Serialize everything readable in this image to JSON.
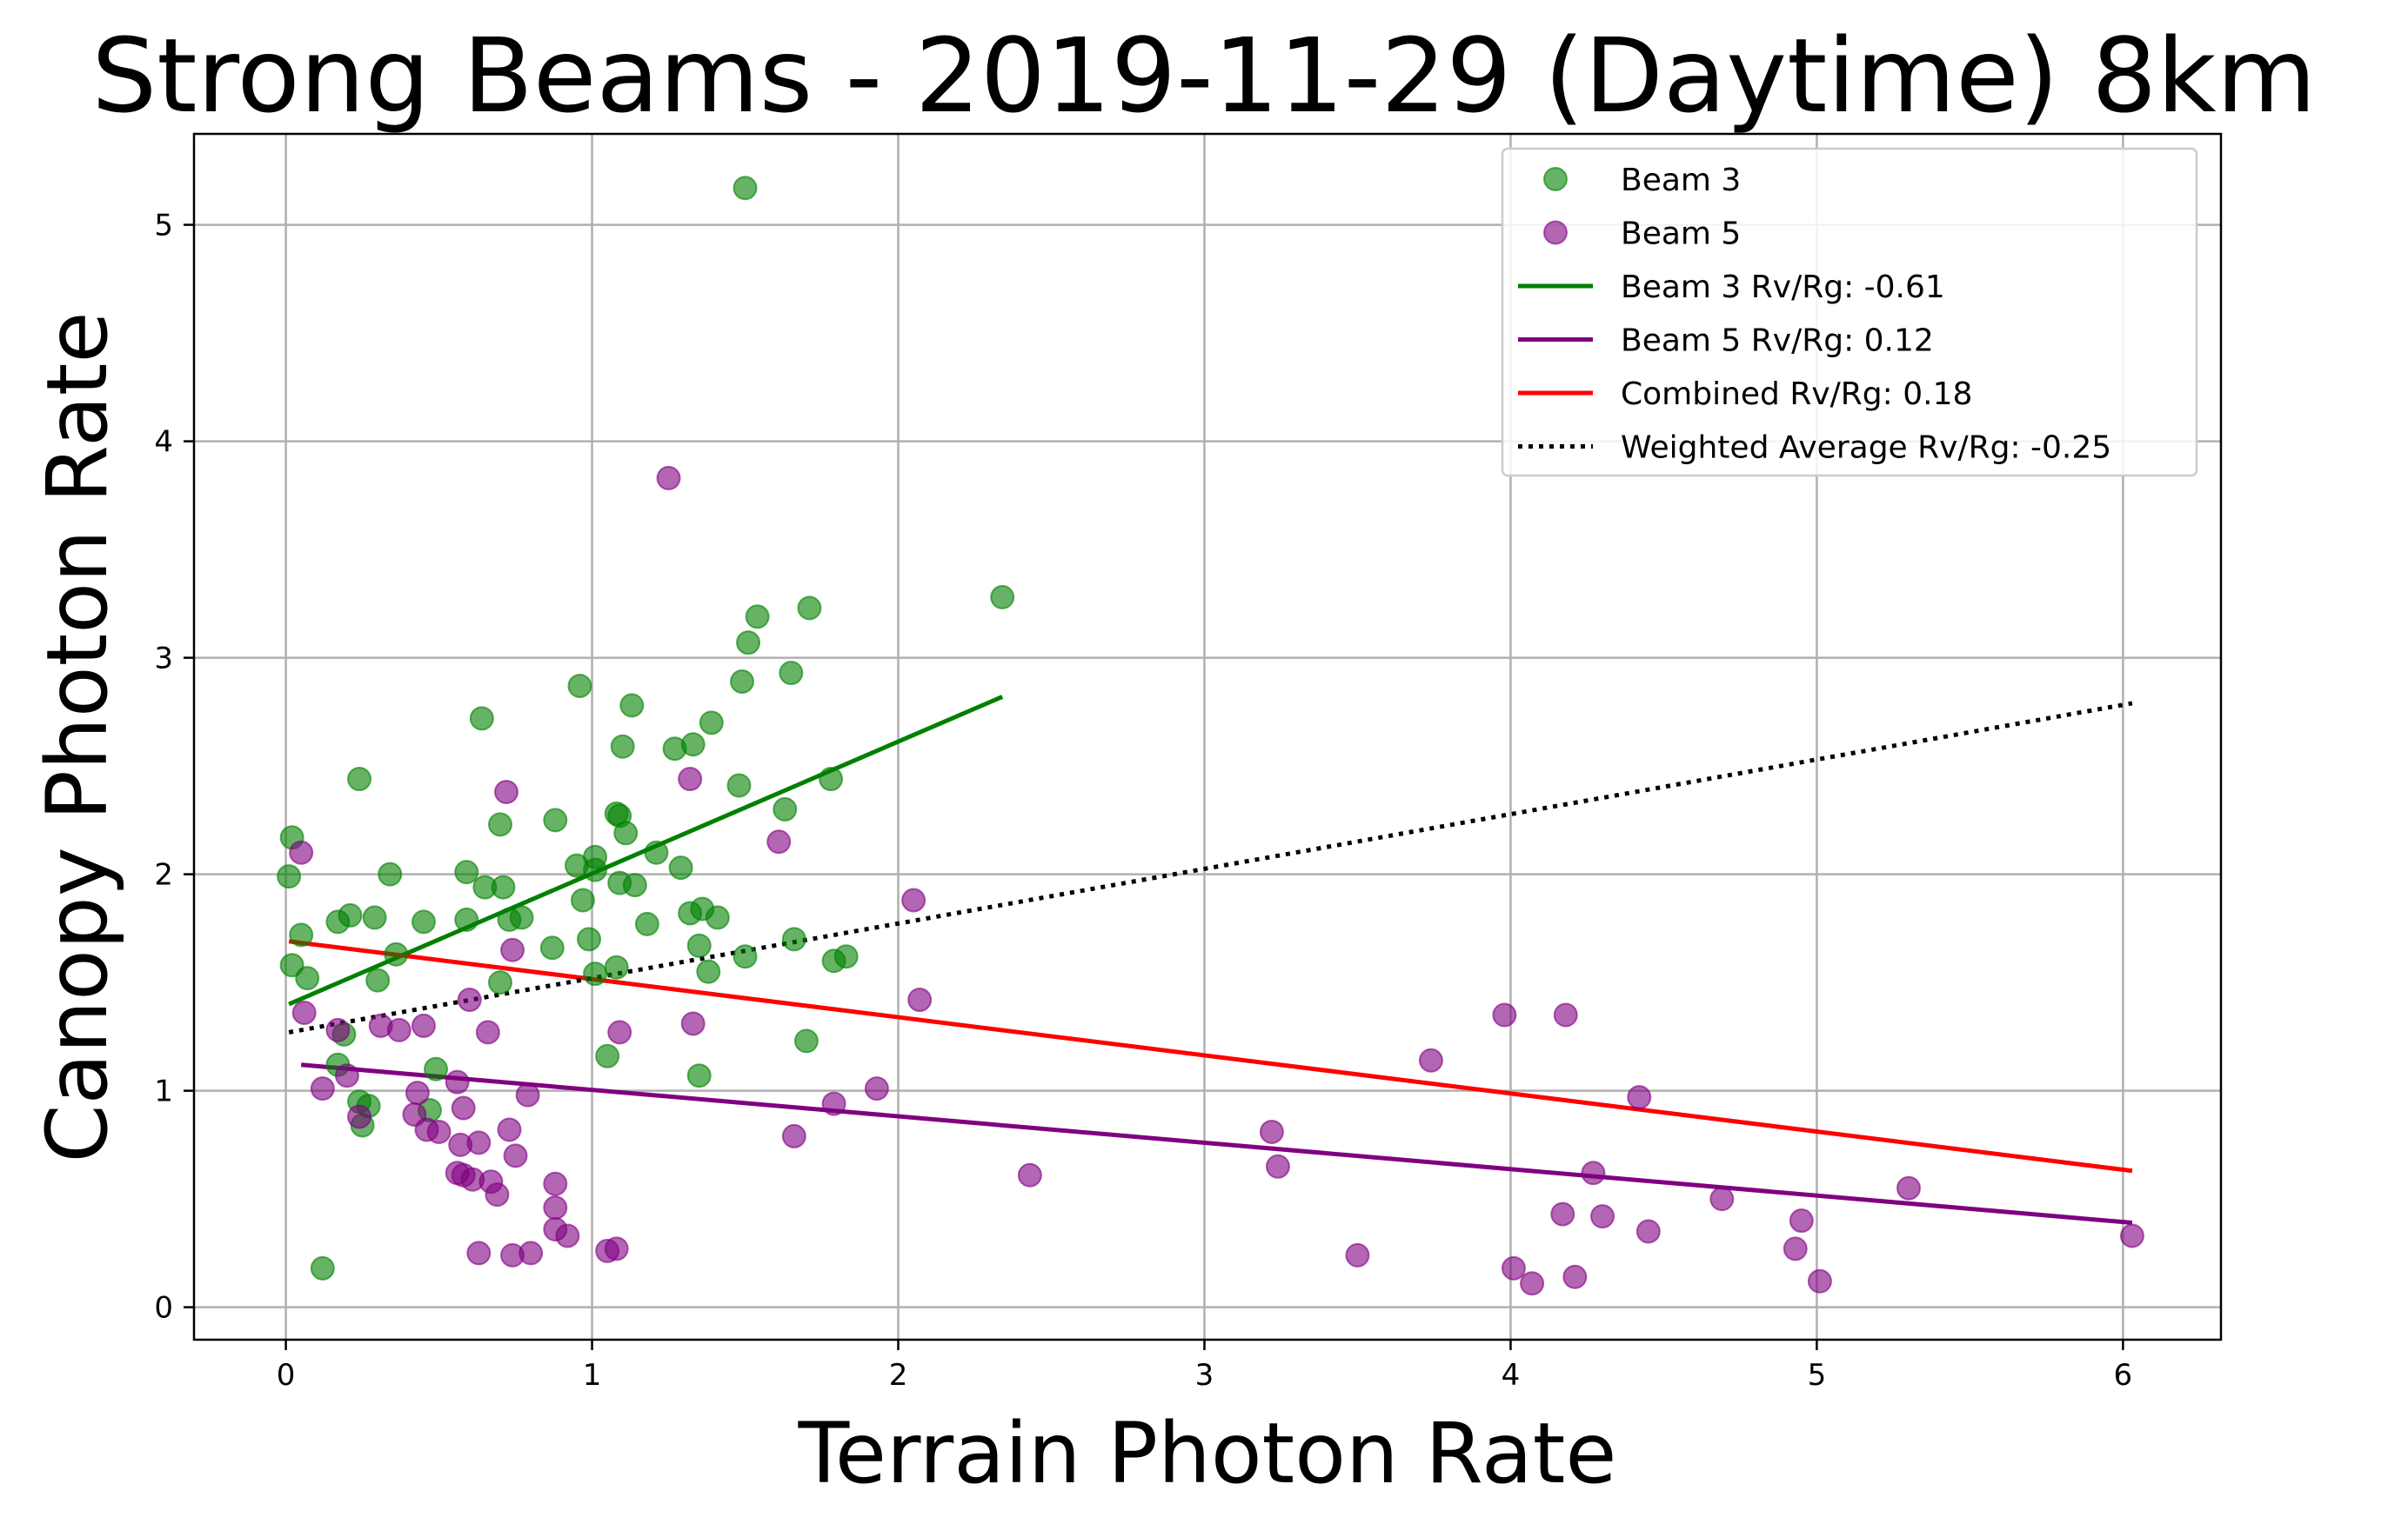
{
  "chart_data": {
    "type": "scatter",
    "title": "Strong Beams - 2019-11-29 (Daytime) 8km",
    "xlabel": "Terrain Photon Rate",
    "ylabel": "Canopy Photon Rate",
    "xlim": [
      -0.3,
      6.32
    ],
    "ylim": [
      -0.15,
      5.42
    ],
    "xticks": [
      0,
      1,
      2,
      3,
      4,
      5,
      6
    ],
    "yticks": [
      0,
      1,
      2,
      3,
      4,
      5
    ],
    "grid": true,
    "legend_position": "top-right",
    "series": [
      {
        "name": "Beam 3",
        "kind": "scatter",
        "color": "#008000",
        "points": [
          [
            1.5,
            5.17
          ],
          [
            2.34,
            3.28
          ],
          [
            1.71,
            3.23
          ],
          [
            1.54,
            3.19
          ],
          [
            1.51,
            3.07
          ],
          [
            1.65,
            2.93
          ],
          [
            1.49,
            2.89
          ],
          [
            0.96,
            2.87
          ],
          [
            1.13,
            2.78
          ],
          [
            0.64,
            2.72
          ],
          [
            1.39,
            2.7
          ],
          [
            1.33,
            2.6
          ],
          [
            1.1,
            2.59
          ],
          [
            1.27,
            2.58
          ],
          [
            1.78,
            2.44
          ],
          [
            0.24,
            2.44
          ],
          [
            1.48,
            2.41
          ],
          [
            1.09,
            2.27
          ],
          [
            1.08,
            2.28
          ],
          [
            1.63,
            2.3
          ],
          [
            0.7,
            2.23
          ],
          [
            0.88,
            2.25
          ],
          [
            1.11,
            2.19
          ],
          [
            0.02,
            2.17
          ],
          [
            1.21,
            2.1
          ],
          [
            1.01,
            2.08
          ],
          [
            0.95,
            2.04
          ],
          [
            1.29,
            2.03
          ],
          [
            1.01,
            2.02
          ],
          [
            0.01,
            1.99
          ],
          [
            0.34,
            2.0
          ],
          [
            0.59,
            2.01
          ],
          [
            0.65,
            1.94
          ],
          [
            0.71,
            1.94
          ],
          [
            1.09,
            1.96
          ],
          [
            1.14,
            1.95
          ],
          [
            0.97,
            1.88
          ],
          [
            1.36,
            1.84
          ],
          [
            0.21,
            1.81
          ],
          [
            0.29,
            1.8
          ],
          [
            0.59,
            1.79
          ],
          [
            0.45,
            1.78
          ],
          [
            0.73,
            1.79
          ],
          [
            0.77,
            1.8
          ],
          [
            1.32,
            1.82
          ],
          [
            1.41,
            1.8
          ],
          [
            1.18,
            1.77
          ],
          [
            0.17,
            1.78
          ],
          [
            0.05,
            1.72
          ],
          [
            1.66,
            1.7
          ],
          [
            0.99,
            1.7
          ],
          [
            1.35,
            1.67
          ],
          [
            0.87,
            1.66
          ],
          [
            0.36,
            1.63
          ],
          [
            1.83,
            1.62
          ],
          [
            1.5,
            1.62
          ],
          [
            1.79,
            1.6
          ],
          [
            0.02,
            1.58
          ],
          [
            1.08,
            1.57
          ],
          [
            1.38,
            1.55
          ],
          [
            1.01,
            1.54
          ],
          [
            0.07,
            1.52
          ],
          [
            0.3,
            1.51
          ],
          [
            0.7,
            1.5
          ],
          [
            0.19,
            1.26
          ],
          [
            1.7,
            1.23
          ],
          [
            1.05,
            1.16
          ],
          [
            0.17,
            1.12
          ],
          [
            0.49,
            1.1
          ],
          [
            1.35,
            1.07
          ],
          [
            0.24,
            0.95
          ],
          [
            0.27,
            0.93
          ],
          [
            0.47,
            0.91
          ],
          [
            0.25,
            0.84
          ],
          [
            0.12,
            0.18
          ]
        ]
      },
      {
        "name": "Beam 5",
        "kind": "scatter",
        "color": "#800080",
        "points": [
          [
            1.25,
            3.83
          ],
          [
            1.32,
            2.44
          ],
          [
            0.72,
            2.38
          ],
          [
            1.61,
            2.15
          ],
          [
            0.05,
            2.1
          ],
          [
            2.05,
            1.88
          ],
          [
            0.74,
            1.65
          ],
          [
            0.6,
            1.42
          ],
          [
            2.07,
            1.42
          ],
          [
            0.06,
            1.36
          ],
          [
            3.98,
            1.35
          ],
          [
            4.18,
            1.35
          ],
          [
            1.33,
            1.31
          ],
          [
            0.31,
            1.3
          ],
          [
            0.45,
            1.3
          ],
          [
            0.37,
            1.28
          ],
          [
            0.17,
            1.28
          ],
          [
            0.66,
            1.27
          ],
          [
            1.09,
            1.27
          ],
          [
            3.74,
            1.14
          ],
          [
            0.2,
            1.07
          ],
          [
            0.56,
            1.04
          ],
          [
            0.12,
            1.01
          ],
          [
            1.93,
            1.01
          ],
          [
            0.43,
            0.99
          ],
          [
            0.79,
            0.98
          ],
          [
            4.42,
            0.97
          ],
          [
            1.79,
            0.94
          ],
          [
            0.58,
            0.92
          ],
          [
            0.42,
            0.89
          ],
          [
            0.24,
            0.88
          ],
          [
            0.46,
            0.82
          ],
          [
            0.5,
            0.81
          ],
          [
            0.73,
            0.82
          ],
          [
            3.22,
            0.81
          ],
          [
            1.66,
            0.79
          ],
          [
            0.57,
            0.75
          ],
          [
            0.63,
            0.76
          ],
          [
            0.75,
            0.7
          ],
          [
            3.24,
            0.65
          ],
          [
            0.56,
            0.62
          ],
          [
            0.58,
            0.61
          ],
          [
            4.27,
            0.62
          ],
          [
            2.43,
            0.61
          ],
          [
            0.61,
            0.59
          ],
          [
            0.67,
            0.58
          ],
          [
            0.88,
            0.57
          ],
          [
            5.3,
            0.55
          ],
          [
            0.69,
            0.52
          ],
          [
            4.69,
            0.5
          ],
          [
            0.88,
            0.46
          ],
          [
            4.17,
            0.43
          ],
          [
            4.3,
            0.42
          ],
          [
            4.95,
            0.4
          ],
          [
            0.88,
            0.36
          ],
          [
            4.45,
            0.35
          ],
          [
            0.92,
            0.33
          ],
          [
            6.03,
            0.33
          ],
          [
            4.93,
            0.27
          ],
          [
            1.05,
            0.26
          ],
          [
            1.08,
            0.27
          ],
          [
            0.63,
            0.25
          ],
          [
            0.8,
            0.25
          ],
          [
            0.74,
            0.24
          ],
          [
            3.5,
            0.24
          ],
          [
            4.01,
            0.18
          ],
          [
            4.21,
            0.14
          ],
          [
            5.01,
            0.12
          ],
          [
            4.07,
            0.11
          ]
        ]
      },
      {
        "name": "Beam 3 Rv/Rg: -0.61",
        "kind": "line",
        "color": "#008000",
        "dash": "solid",
        "points": [
          [
            0.01,
            1.4
          ],
          [
            2.34,
            2.82
          ]
        ]
      },
      {
        "name": "Beam 5 Rv/Rg: 0.12",
        "kind": "line",
        "color": "#800080",
        "dash": "solid",
        "points": [
          [
            0.05,
            1.12
          ],
          [
            6.03,
            0.39
          ]
        ]
      },
      {
        "name": "Combined Rv/Rg: 0.18",
        "kind": "line",
        "color": "#ff0000",
        "dash": "solid",
        "points": [
          [
            0.01,
            1.69
          ],
          [
            6.03,
            0.63
          ]
        ]
      },
      {
        "name": "Weighted Average Rv/Rg: -0.25",
        "kind": "line",
        "color": "#000000",
        "dash": "dotted",
        "points": [
          [
            0.01,
            1.27
          ],
          [
            6.03,
            2.79
          ]
        ]
      }
    ]
  }
}
